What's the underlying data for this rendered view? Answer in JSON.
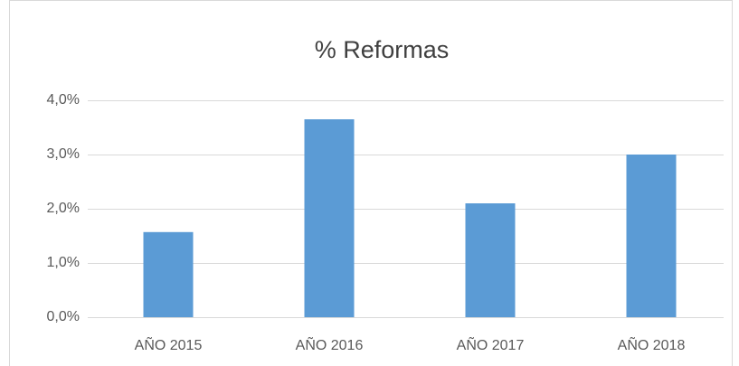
{
  "chart_data": {
    "type": "bar",
    "title": "% Reformas",
    "categories": [
      "AÑO 2015",
      "AÑO 2016",
      "AÑO 2017",
      "AÑO 2018"
    ],
    "values": [
      1.57,
      3.65,
      2.1,
      3.0
    ],
    "color": "#5b9bd5",
    "ylim": [
      0,
      4
    ],
    "yticks": [
      {
        "value": 0,
        "label": "0,0%"
      },
      {
        "value": 1,
        "label": "1,0%"
      },
      {
        "value": 2,
        "label": "2,0%"
      },
      {
        "value": 3,
        "label": "3,0%"
      },
      {
        "value": 4,
        "label": "4,0%"
      }
    ],
    "grid": true
  }
}
